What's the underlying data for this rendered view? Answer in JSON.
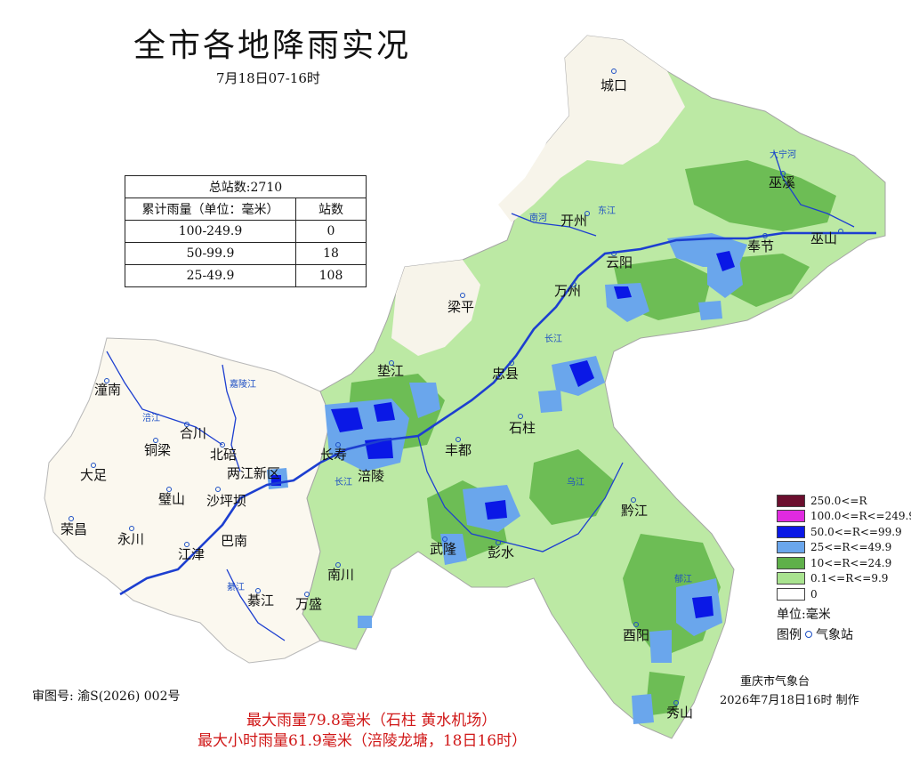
{
  "title": "全市各地降雨实况",
  "subtitle": "7月18日07-16时",
  "stats": {
    "total": "总站数:2710",
    "header": [
      "累计雨量（单位：毫米）",
      "站数"
    ],
    "rows": [
      {
        "range": "100-249.9",
        "count": "0"
      },
      {
        "range": "50-99.9",
        "count": "18"
      },
      {
        "range": "25-49.9",
        "count": "108"
      }
    ]
  },
  "legend": {
    "items": [
      {
        "label": "250.0<=R",
        "color": "#6b0f2e"
      },
      {
        "label": "100.0<=R<=249.9",
        "color": "#e02ae0"
      },
      {
        "label": "50.0<=R<=99.9",
        "color": "#0a18e6"
      },
      {
        "label": "25<=R<=49.9",
        "color": "#6aa6ec"
      },
      {
        "label": "10<=R<=24.9",
        "color": "#5fb04a"
      },
      {
        "label": "0.1<=R<=9.9",
        "color": "#a9e38f"
      },
      {
        "label": "0",
        "color": "#ffffff"
      }
    ],
    "unit": "单位:毫米",
    "key_label": "图例",
    "key_item": "气象站"
  },
  "places": {
    "chengkou": "城口",
    "wuxi": "巫溪",
    "kaizhou": "开州",
    "yunyang": "云阳",
    "fengjie": "奉节",
    "wushan": "巫山",
    "wanzhou": "万州",
    "liangping": "梁平",
    "dianjiang": "垫江",
    "zhongxian": "忠县",
    "shizhu": "石柱",
    "fengdu": "丰都",
    "changshou": "长寿",
    "fuling": "涪陵",
    "tongnan": "潼南",
    "hechuan": "合川",
    "tongliang": "铜梁",
    "beibei": "北碚",
    "liangjiang": "两江新区",
    "dazu": "大足",
    "bishan": "璧山",
    "shapingba": "沙坪坝",
    "rongchang": "荣昌",
    "yongchuan": "永川",
    "jiangjin": "江津",
    "banan": "巴南",
    "nanchuan": "南川",
    "qijiang": "綦江",
    "wansheng": "万盛",
    "wulong": "武隆",
    "pengshui": "彭水",
    "qianjiang": "黔江",
    "youyang": "酉阳",
    "xiushan": "秀山"
  },
  "rivers": {
    "daning": "大宁河",
    "nanhe": "南河",
    "dongjiang": "东江",
    "changjiang1": "长江",
    "changjiang2": "长江",
    "wujiang": "乌江",
    "jialing": "嘉陵江",
    "fujiang": "涪江",
    "qijiang_r": "綦江",
    "yujiang": "郁江"
  },
  "footer": {
    "producer": "重庆市气象台",
    "produced": "2026年7月18日16时 制作",
    "approval": "审图号: 渝S(2026) 002号",
    "max_rain": "最大雨量79.8毫米（石柱 黄水机场）",
    "max_hourly": "最大小时雨量61.9毫米（涪陵龙塘，18日16时）"
  }
}
